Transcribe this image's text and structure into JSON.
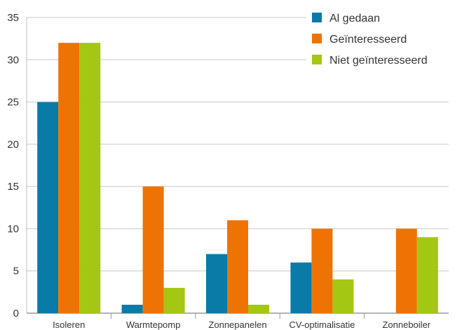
{
  "chart_data": {
    "type": "bar",
    "title": "",
    "xlabel": "",
    "ylabel": "",
    "ylim": [
      0,
      35
    ],
    "yticks": [
      0,
      5,
      10,
      15,
      20,
      25,
      30,
      35
    ],
    "grid": true,
    "legend_position": "top-right",
    "categories": [
      "Isoleren",
      "Warmtepomp",
      "Zonnepanelen",
      "CV-optimalisatie",
      "Zonneboiler"
    ],
    "series": [
      {
        "name": "Al gedaan",
        "color": "#0a7aa6",
        "values": [
          25,
          1,
          7,
          6,
          0
        ]
      },
      {
        "name": "Geïnteresseerd",
        "color": "#ef7302",
        "values": [
          32,
          15,
          11,
          10,
          10
        ]
      },
      {
        "name": "Niet geïnteresseerd",
        "color": "#a3c712",
        "values": [
          32,
          3,
          1,
          4,
          9
        ]
      }
    ]
  }
}
